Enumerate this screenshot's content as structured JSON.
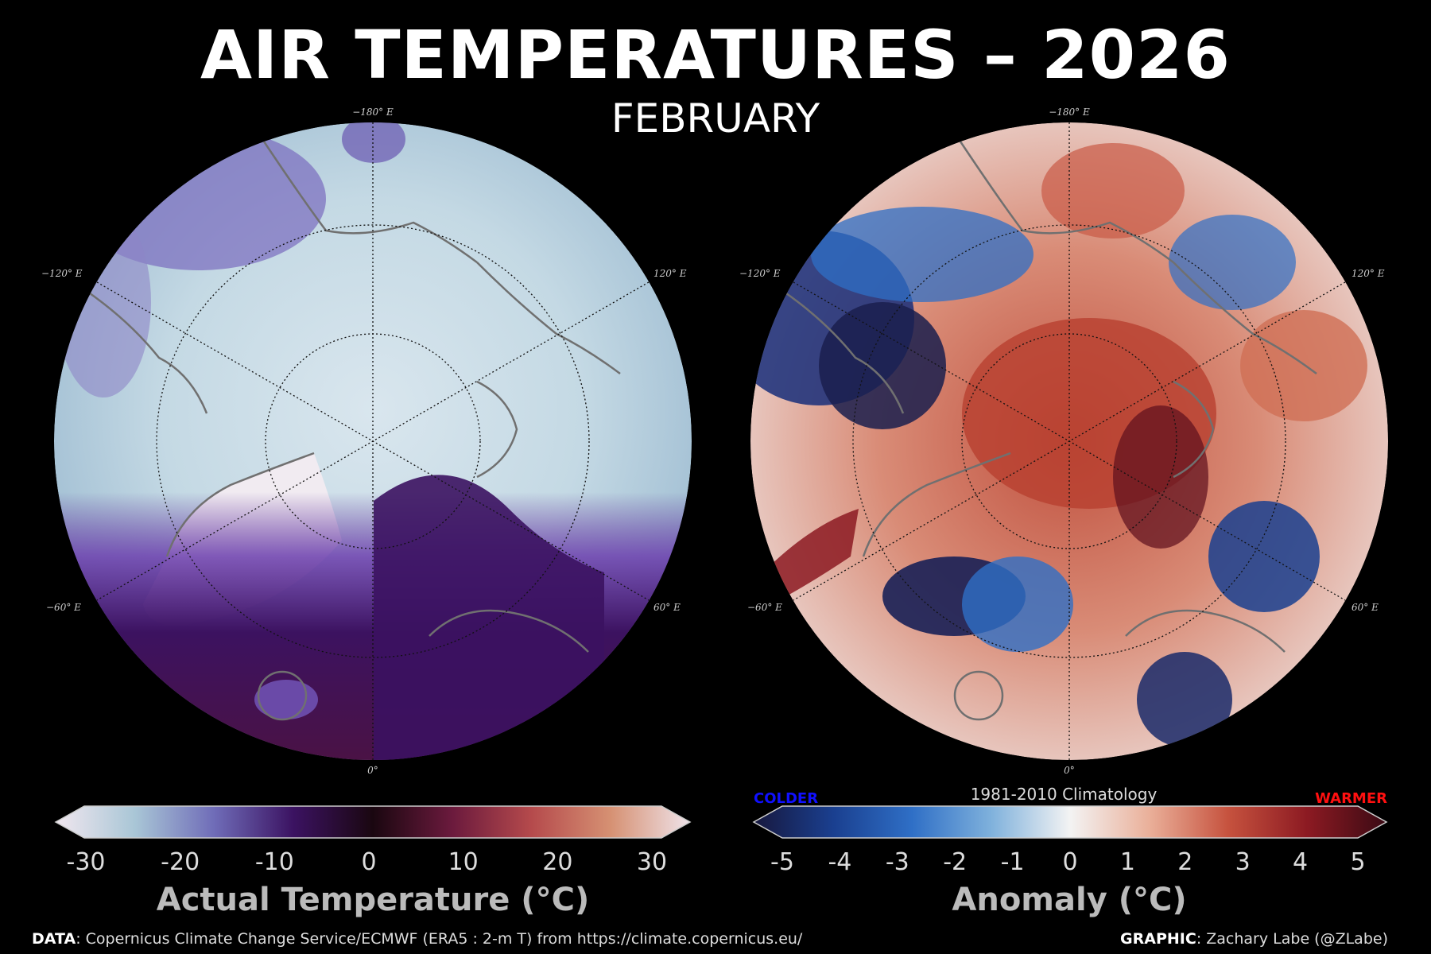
{
  "title": "AIR TEMPERATURES – 2026",
  "subtitle": "FEBRUARY",
  "maps": {
    "left": {
      "coord_labels": {
        "top": "−180° E",
        "upper_left": "−120° E",
        "upper_right": "120° E",
        "lower_left": "−60° E",
        "lower_right": "60° E",
        "bottom": "0°"
      },
      "colorbar_label": "Actual Temperature (°C)",
      "ticks": [
        "-30",
        "-20",
        "-10",
        "0",
        "10",
        "20",
        "30"
      ],
      "colors": [
        "#f1e7ef",
        "#a9c6d6",
        "#6f6cb8",
        "#3b1261",
        "#1a0710",
        "#6b1a3d",
        "#b54a4c",
        "#d69173",
        "#efe3ea"
      ]
    },
    "right": {
      "coord_labels": {
        "top": "−180° E",
        "upper_left": "−120° E",
        "upper_right": "120° E",
        "lower_left": "−60° E",
        "lower_right": "60° E",
        "bottom": "0°"
      },
      "colorbar_label": "Anomaly (°C)",
      "ticks": [
        "-5",
        "-4",
        "-3",
        "-2",
        "-1",
        "0",
        "1",
        "2",
        "3",
        "4",
        "5"
      ],
      "climatology": "1981-2010 Climatology",
      "colder": "COLDER",
      "warmer": "WARMER",
      "colors": [
        "#17183e",
        "#1a3f8f",
        "#2f6fc6",
        "#7fb1dc",
        "#f3f3f3",
        "#eab09a",
        "#c6523e",
        "#8c1a22",
        "#3a0a14"
      ]
    }
  },
  "footer": {
    "data_label": "DATA",
    "data_text": ": Copernicus Climate Change Service/ECMWF (ERA5 : 2-m T) from https://climate.copernicus.eu/",
    "graphic_label": "GRAPHIC",
    "graphic_text": ": Zachary Labe (@ZLabe)"
  }
}
